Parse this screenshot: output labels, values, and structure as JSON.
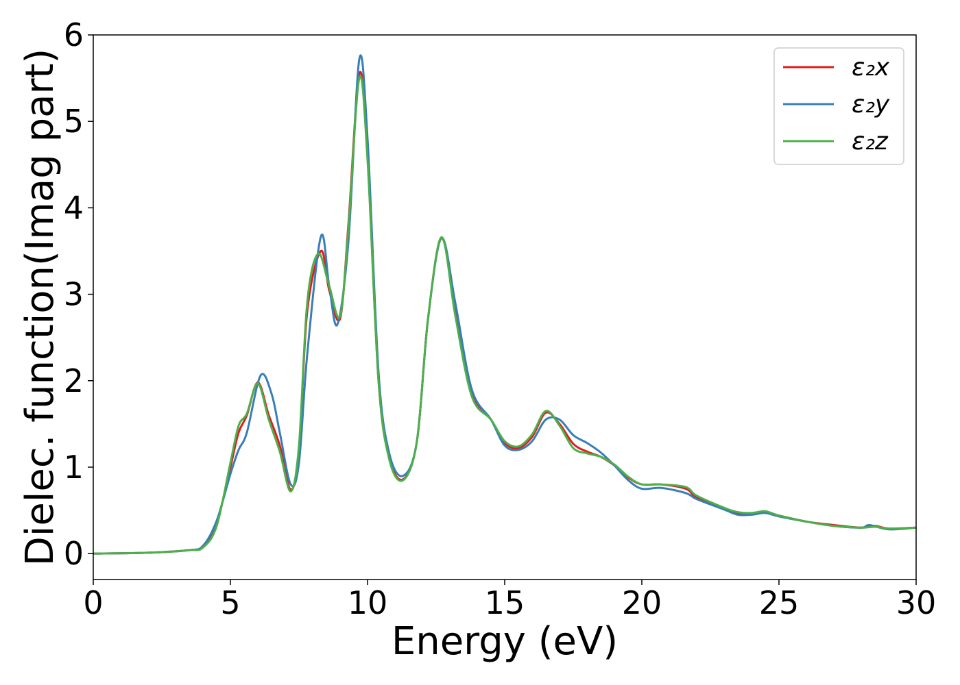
{
  "chart_data": {
    "type": "line",
    "title": "",
    "xlabel": "Energy (eV)",
    "ylabel": "Dielec. function(Imag part)",
    "xlim": [
      0,
      30
    ],
    "ylim": [
      -0.3,
      6
    ],
    "xticks": [
      "0",
      "5",
      "10",
      "15",
      "20",
      "25",
      "30"
    ],
    "yticks": [
      "0",
      "1",
      "2",
      "3",
      "4",
      "5",
      "6"
    ],
    "grid": false,
    "legend_position": "top-right",
    "series": [
      {
        "name": "ε₂x",
        "color": "#e41a1c",
        "points": [
          [
            0,
            0
          ],
          [
            2,
            0.01
          ],
          [
            3.5,
            0.04
          ],
          [
            4,
            0.08
          ],
          [
            4.5,
            0.35
          ],
          [
            5,
            1.0
          ],
          [
            5.3,
            1.4
          ],
          [
            5.6,
            1.6
          ],
          [
            6,
            1.98
          ],
          [
            6.4,
            1.6
          ],
          [
            6.8,
            1.25
          ],
          [
            7.2,
            0.74
          ],
          [
            7.5,
            1.2
          ],
          [
            7.8,
            2.8
          ],
          [
            8.3,
            3.5
          ],
          [
            8.6,
            3.05
          ],
          [
            9,
            2.72
          ],
          [
            9.3,
            3.8
          ],
          [
            9.7,
            5.55
          ],
          [
            10,
            4.6
          ],
          [
            10.4,
            2.0
          ],
          [
            10.8,
            1.1
          ],
          [
            11.3,
            0.86
          ],
          [
            11.8,
            1.3
          ],
          [
            12.2,
            2.7
          ],
          [
            12.7,
            3.65
          ],
          [
            13.2,
            2.8
          ],
          [
            13.8,
            1.85
          ],
          [
            14.5,
            1.55
          ],
          [
            15,
            1.28
          ],
          [
            15.5,
            1.22
          ],
          [
            16,
            1.35
          ],
          [
            16.5,
            1.63
          ],
          [
            17,
            1.5
          ],
          [
            17.5,
            1.27
          ],
          [
            18,
            1.18
          ],
          [
            18.5,
            1.12
          ],
          [
            19,
            1.02
          ],
          [
            19.5,
            0.88
          ],
          [
            20,
            0.8
          ],
          [
            20.7,
            0.8
          ],
          [
            21.6,
            0.75
          ],
          [
            22,
            0.65
          ],
          [
            23,
            0.52
          ],
          [
            23.5,
            0.47
          ],
          [
            24,
            0.46
          ],
          [
            24.5,
            0.48
          ],
          [
            25,
            0.44
          ],
          [
            26,
            0.37
          ],
          [
            27,
            0.33
          ],
          [
            28,
            0.3
          ],
          [
            28.5,
            0.32
          ],
          [
            29,
            0.29
          ],
          [
            30,
            0.3
          ]
        ]
      },
      {
        "name": "ε₂y",
        "color": "#377eb8",
        "points": [
          [
            0,
            0
          ],
          [
            2,
            0.01
          ],
          [
            3.5,
            0.04
          ],
          [
            4,
            0.09
          ],
          [
            4.5,
            0.38
          ],
          [
            5,
            0.92
          ],
          [
            5.3,
            1.2
          ],
          [
            5.6,
            1.4
          ],
          [
            6.1,
            2.06
          ],
          [
            6.5,
            1.85
          ],
          [
            6.8,
            1.4
          ],
          [
            7.2,
            0.8
          ],
          [
            7.5,
            1.05
          ],
          [
            7.8,
            2.3
          ],
          [
            8.3,
            3.67
          ],
          [
            8.6,
            3.1
          ],
          [
            8.9,
            2.65
          ],
          [
            9.3,
            3.6
          ],
          [
            9.7,
            5.72
          ],
          [
            10,
            4.8
          ],
          [
            10.4,
            2.1
          ],
          [
            10.8,
            1.15
          ],
          [
            11.3,
            0.9
          ],
          [
            11.8,
            1.3
          ],
          [
            12.2,
            2.7
          ],
          [
            12.7,
            3.65
          ],
          [
            13.2,
            2.9
          ],
          [
            13.8,
            1.9
          ],
          [
            14.5,
            1.55
          ],
          [
            15,
            1.25
          ],
          [
            15.5,
            1.2
          ],
          [
            16,
            1.3
          ],
          [
            16.5,
            1.55
          ],
          [
            17,
            1.55
          ],
          [
            17.5,
            1.37
          ],
          [
            18,
            1.28
          ],
          [
            18.5,
            1.17
          ],
          [
            19,
            1.02
          ],
          [
            19.5,
            0.85
          ],
          [
            20,
            0.75
          ],
          [
            20.7,
            0.76
          ],
          [
            21.6,
            0.7
          ],
          [
            22,
            0.63
          ],
          [
            23,
            0.51
          ],
          [
            23.5,
            0.45
          ],
          [
            24,
            0.45
          ],
          [
            24.5,
            0.47
          ],
          [
            25,
            0.43
          ],
          [
            26,
            0.37
          ],
          [
            27,
            0.32
          ],
          [
            28,
            0.3
          ],
          [
            28.3,
            0.33
          ],
          [
            29,
            0.28
          ],
          [
            30,
            0.3
          ]
        ]
      },
      {
        "name": "ε₂z",
        "color": "#4daf4a",
        "points": [
          [
            0,
            0
          ],
          [
            2,
            0.01
          ],
          [
            3.5,
            0.04
          ],
          [
            4,
            0.07
          ],
          [
            4.5,
            0.32
          ],
          [
            5,
            1.05
          ],
          [
            5.3,
            1.48
          ],
          [
            5.6,
            1.62
          ],
          [
            6,
            1.97
          ],
          [
            6.4,
            1.55
          ],
          [
            6.8,
            1.18
          ],
          [
            7.2,
            0.72
          ],
          [
            7.5,
            1.25
          ],
          [
            7.8,
            2.9
          ],
          [
            8.2,
            3.47
          ],
          [
            8.6,
            3.1
          ],
          [
            9,
            2.75
          ],
          [
            9.3,
            3.75
          ],
          [
            9.7,
            5.5
          ],
          [
            10,
            4.55
          ],
          [
            10.4,
            2.0
          ],
          [
            10.8,
            1.08
          ],
          [
            11.3,
            0.85
          ],
          [
            11.8,
            1.3
          ],
          [
            12.2,
            2.7
          ],
          [
            12.7,
            3.66
          ],
          [
            13.2,
            2.75
          ],
          [
            13.8,
            1.82
          ],
          [
            14.5,
            1.55
          ],
          [
            15,
            1.3
          ],
          [
            15.5,
            1.24
          ],
          [
            16,
            1.38
          ],
          [
            16.5,
            1.65
          ],
          [
            17,
            1.48
          ],
          [
            17.5,
            1.22
          ],
          [
            18,
            1.16
          ],
          [
            18.5,
            1.12
          ],
          [
            19,
            1.03
          ],
          [
            19.5,
            0.89
          ],
          [
            20,
            0.8
          ],
          [
            20.7,
            0.8
          ],
          [
            21.6,
            0.77
          ],
          [
            22,
            0.67
          ],
          [
            23,
            0.53
          ],
          [
            23.5,
            0.48
          ],
          [
            24,
            0.47
          ],
          [
            24.5,
            0.49
          ],
          [
            25,
            0.44
          ],
          [
            26,
            0.37
          ],
          [
            27,
            0.32
          ],
          [
            28,
            0.3
          ],
          [
            28.5,
            0.31
          ],
          [
            29,
            0.29
          ],
          [
            30,
            0.3
          ]
        ]
      }
    ]
  }
}
